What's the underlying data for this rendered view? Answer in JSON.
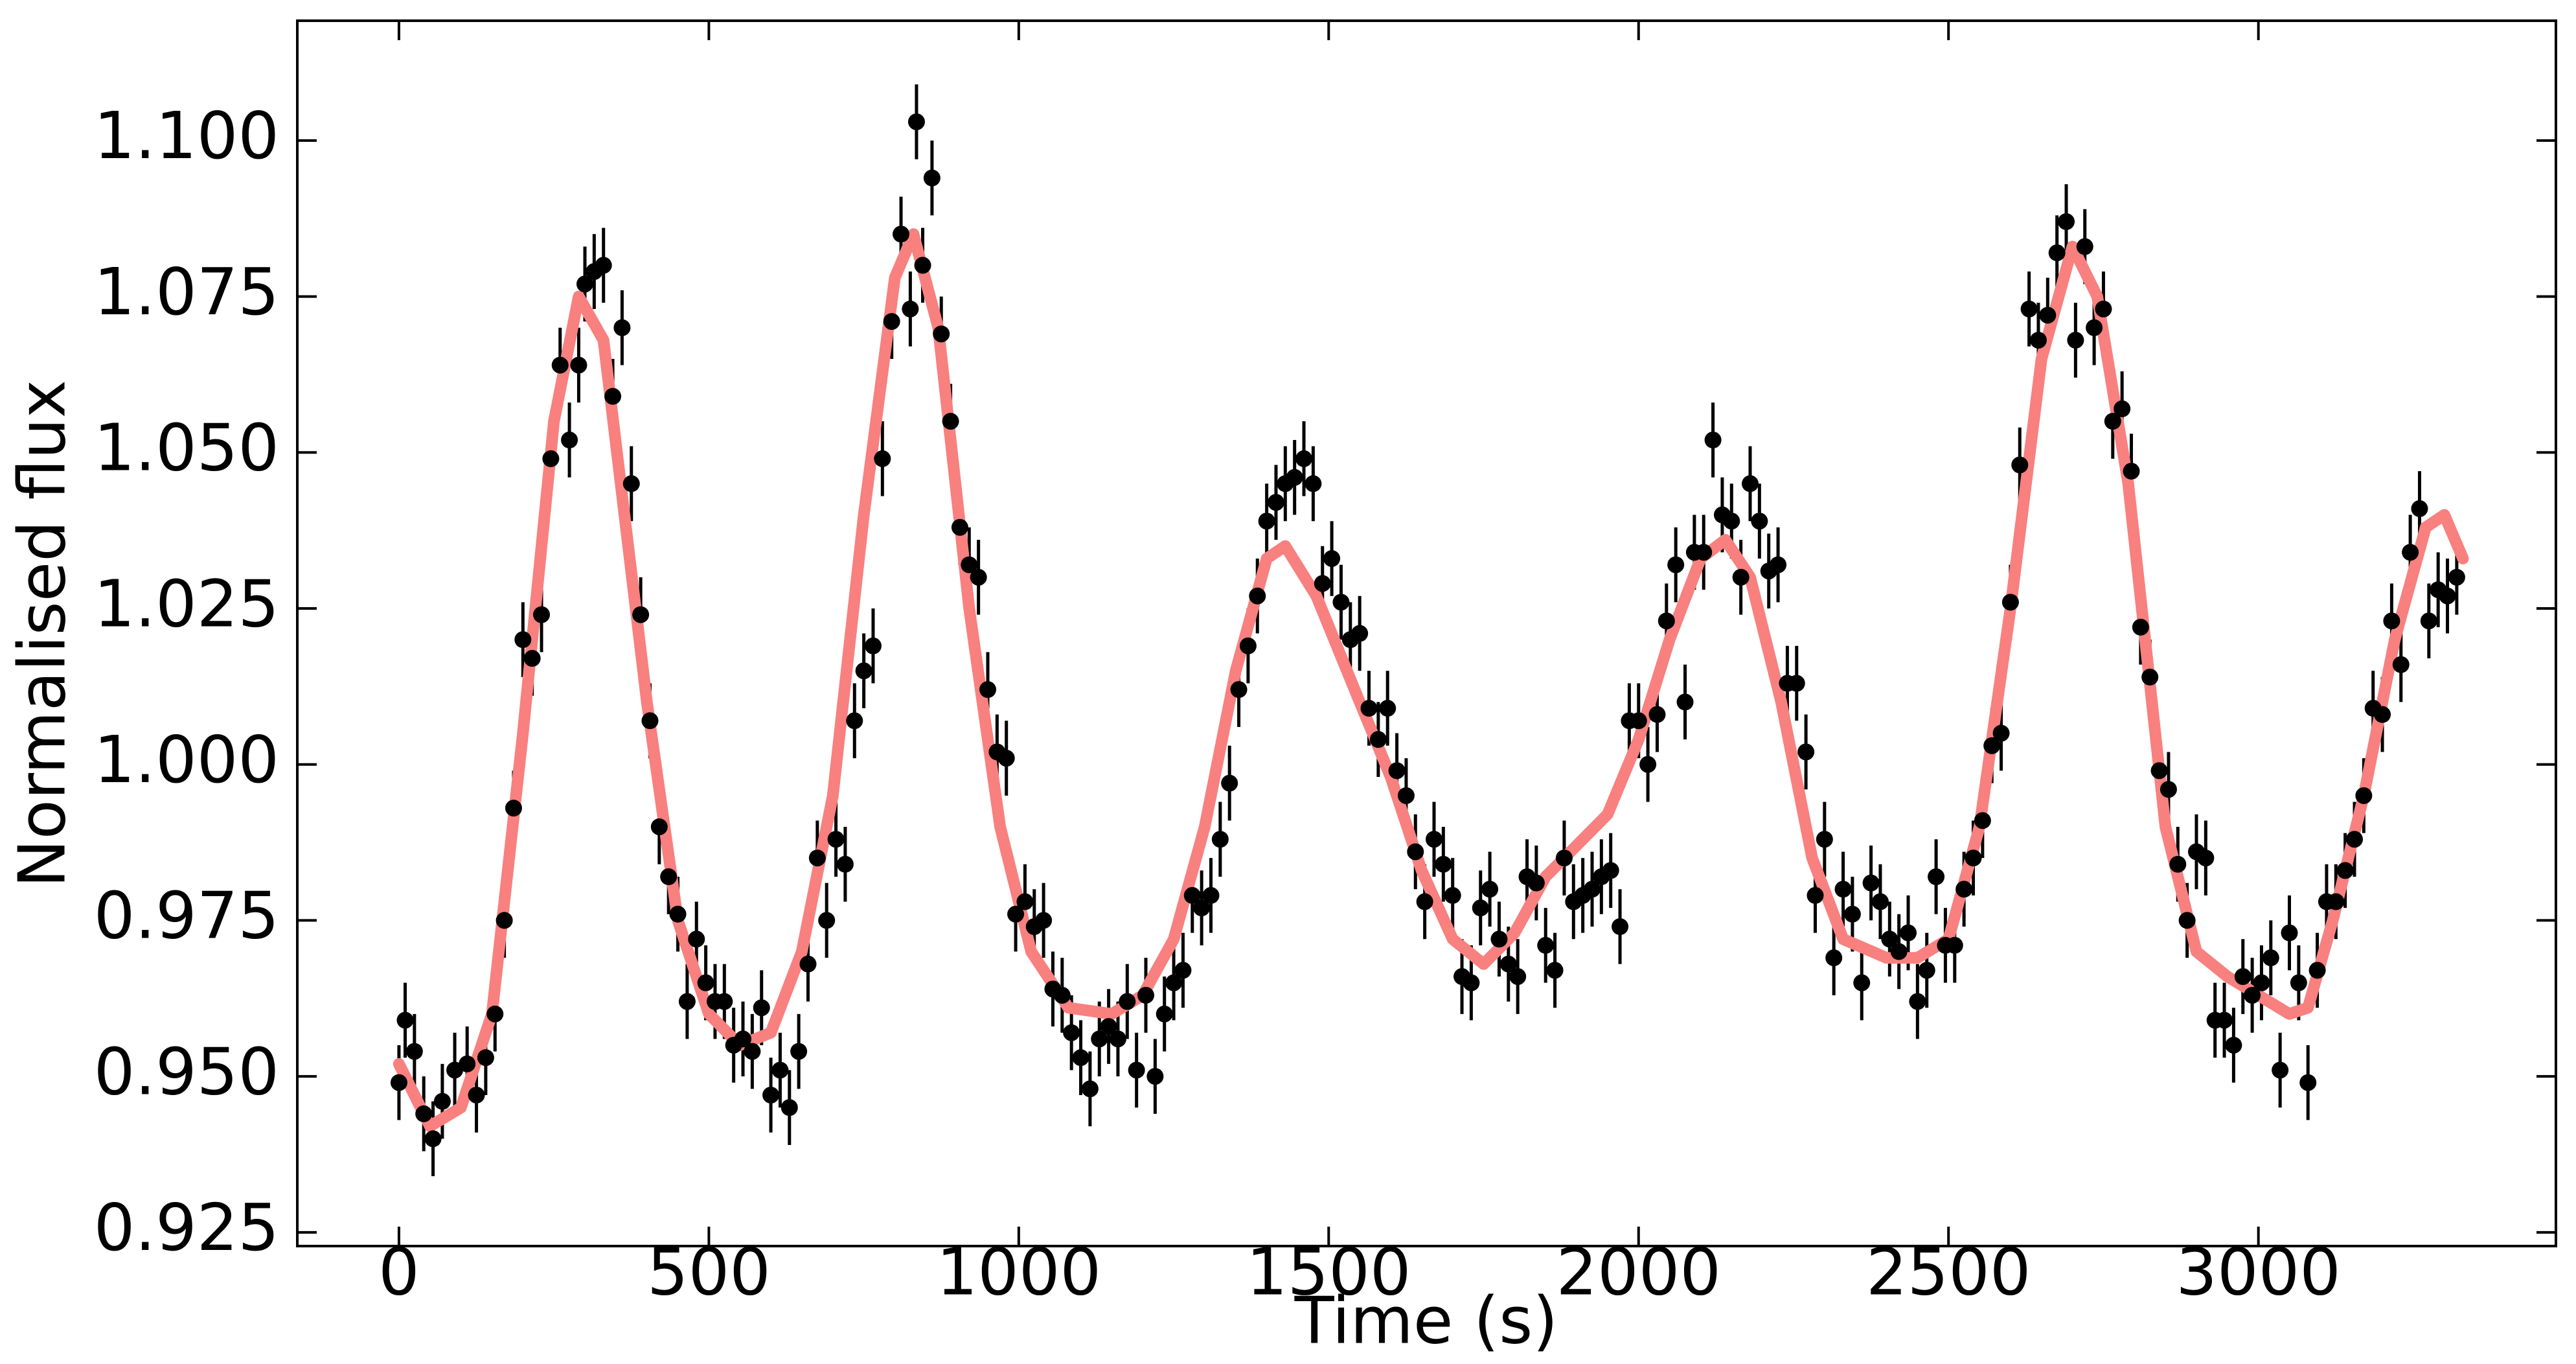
{
  "chart_data": {
    "type": "scatter",
    "xlabel": "Time (s)",
    "ylabel": "Normalised flux",
    "xlim": [
      -164,
      3480
    ],
    "ylim": [
      0.9228,
      1.1192
    ],
    "xticks": [
      0,
      500,
      1000,
      1500,
      2000,
      2500,
      3000
    ],
    "yticks": [
      {
        "value": 0.925,
        "label": "0.925"
      },
      {
        "value": 0.95,
        "label": "0.950"
      },
      {
        "value": 0.975,
        "label": "0.975"
      },
      {
        "value": 1.0,
        "label": "1.000"
      },
      {
        "value": 1.025,
        "label": "1.025"
      },
      {
        "value": 1.05,
        "label": "1.050"
      },
      {
        "value": 1.075,
        "label": "1.075"
      },
      {
        "value": 1.1,
        "label": "1.100"
      }
    ],
    "points": {
      "color": "#000000",
      "yerr": 0.006,
      "x": [
        0,
        10,
        25,
        40,
        55,
        70,
        90,
        110,
        125,
        140,
        155,
        170,
        185,
        200,
        215,
        230,
        245,
        260,
        275,
        290,
        300,
        315,
        330,
        345,
        360,
        375,
        390,
        405,
        420,
        435,
        450,
        465,
        480,
        495,
        510,
        525,
        540,
        555,
        570,
        585,
        600,
        615,
        630,
        645,
        660,
        675,
        690,
        705,
        720,
        735,
        750,
        765,
        780,
        795,
        810,
        825,
        835,
        845,
        860,
        875,
        890,
        905,
        920,
        935,
        950,
        965,
        980,
        995,
        1010,
        1025,
        1040,
        1055,
        1070,
        1085,
        1100,
        1115,
        1130,
        1145,
        1160,
        1175,
        1190,
        1205,
        1220,
        1235,
        1250,
        1265,
        1280,
        1295,
        1310,
        1325,
        1340,
        1355,
        1370,
        1385,
        1400,
        1415,
        1430,
        1445,
        1460,
        1475,
        1490,
        1505,
        1520,
        1535,
        1550,
        1565,
        1580,
        1595,
        1610,
        1625,
        1640,
        1655,
        1670,
        1685,
        1700,
        1715,
        1730,
        1745,
        1760,
        1775,
        1790,
        1805,
        1820,
        1835,
        1850,
        1865,
        1880,
        1895,
        1910,
        1925,
        1940,
        1955,
        1970,
        1985,
        2000,
        2015,
        2030,
        2045,
        2060,
        2075,
        2090,
        2105,
        2120,
        2135,
        2150,
        2165,
        2180,
        2195,
        2210,
        2225,
        2240,
        2255,
        2270,
        2285,
        2300,
        2315,
        2330,
        2345,
        2360,
        2375,
        2390,
        2405,
        2420,
        2435,
        2450,
        2465,
        2480,
        2495,
        2510,
        2525,
        2540,
        2555,
        2570,
        2585,
        2600,
        2615,
        2630,
        2645,
        2660,
        2675,
        2690,
        2705,
        2720,
        2735,
        2750,
        2765,
        2780,
        2795,
        2810,
        2825,
        2840,
        2855,
        2870,
        2885,
        2900,
        2915,
        2930,
        2945,
        2960,
        2975,
        2990,
        3005,
        3020,
        3035,
        3050,
        3065,
        3080,
        3095,
        3110,
        3125,
        3140,
        3155,
        3170,
        3185,
        3200,
        3215,
        3230,
        3245,
        3260,
        3275,
        3290,
        3305,
        3320
      ],
      "values": [
        0.949,
        0.959,
        0.954,
        0.944,
        0.94,
        0.946,
        0.951,
        0.952,
        0.947,
        0.953,
        0.96,
        0.975,
        0.993,
        1.02,
        1.017,
        1.024,
        1.049,
        1.064,
        1.052,
        1.064,
        1.077,
        1.079,
        1.08,
        1.059,
        1.07,
        1.045,
        1.024,
        1.007,
        0.99,
        0.982,
        0.976,
        0.962,
        0.972,
        0.965,
        0.962,
        0.962,
        0.955,
        0.956,
        0.954,
        0.961,
        0.947,
        0.951,
        0.945,
        0.954,
        0.968,
        0.985,
        0.975,
        0.988,
        0.984,
        1.007,
        1.015,
        1.019,
        1.049,
        1.071,
        1.085,
        1.073,
        1.103,
        1.08,
        1.094,
        1.069,
        1.055,
        1.038,
        1.032,
        1.03,
        1.012,
        1.002,
        1.001,
        0.976,
        0.978,
        0.974,
        0.975,
        0.964,
        0.963,
        0.957,
        0.953,
        0.948,
        0.956,
        0.958,
        0.956,
        0.962,
        0.951,
        0.963,
        0.95,
        0.96,
        0.965,
        0.967,
        0.979,
        0.977,
        0.979,
        0.988,
        0.997,
        1.012,
        1.019,
        1.027,
        1.039,
        1.042,
        1.045,
        1.046,
        1.049,
        1.045,
        1.029,
        1.033,
        1.026,
        1.02,
        1.021,
        1.009,
        1.004,
        1.009,
        0.999,
        0.995,
        0.986,
        0.978,
        0.988,
        0.984,
        0.979,
        0.966,
        0.965,
        0.977,
        0.98,
        0.972,
        0.968,
        0.966,
        0.982,
        0.981,
        0.971,
        0.967,
        0.985,
        0.978,
        0.979,
        0.98,
        0.982,
        0.983,
        0.974,
        1.007,
        1.007,
        1.0,
        1.008,
        1.023,
        1.032,
        1.01,
        1.034,
        1.034,
        1.052,
        1.04,
        1.039,
        1.03,
        1.045,
        1.039,
        1.031,
        1.032,
        1.013,
        1.013,
        1.002,
        0.979,
        0.988,
        0.969,
        0.98,
        0.976,
        0.965,
        0.981,
        0.978,
        0.972,
        0.97,
        0.973,
        0.962,
        0.967,
        0.982,
        0.971,
        0.971,
        0.98,
        0.985,
        0.991,
        1.003,
        1.005,
        1.026,
        1.048,
        1.073,
        1.068,
        1.072,
        1.082,
        1.087,
        1.068,
        1.083,
        1.07,
        1.073,
        1.055,
        1.057,
        1.047,
        1.022,
        1.014,
        0.999,
        0.996,
        0.984,
        0.975,
        0.986,
        0.985,
        0.959,
        0.959,
        0.955,
        0.966,
        0.963,
        0.965,
        0.969,
        0.951,
        0.973,
        0.965,
        0.949,
        0.967,
        0.978,
        0.978,
        0.983,
        0.988,
        0.995,
        1.009,
        1.008,
        1.023,
        1.016,
        1.034,
        1.041,
        1.023,
        1.028,
        1.027,
        1.03
      ]
    },
    "model": {
      "color": "#f8807f",
      "x": [
        0,
        50,
        100,
        150,
        200,
        250,
        290,
        330,
        400,
        450,
        500,
        550,
        600,
        650,
        700,
        750,
        800,
        830,
        870,
        920,
        970,
        1020,
        1080,
        1150,
        1200,
        1250,
        1300,
        1350,
        1400,
        1430,
        1480,
        1550,
        1600,
        1650,
        1700,
        1750,
        1800,
        1850,
        1900,
        1950,
        2000,
        2050,
        2100,
        2140,
        2180,
        2230,
        2280,
        2330,
        2400,
        2450,
        2500,
        2550,
        2600,
        2650,
        2700,
        2740,
        2790,
        2850,
        2900,
        2950,
        3000,
        3050,
        3080,
        3120,
        3170,
        3220,
        3270,
        3300,
        3330
      ],
      "values": [
        0.952,
        0.942,
        0.945,
        0.96,
        1.005,
        1.055,
        1.075,
        1.068,
        1.01,
        0.975,
        0.96,
        0.955,
        0.957,
        0.97,
        0.995,
        1.04,
        1.078,
        1.085,
        1.07,
        1.025,
        0.99,
        0.97,
        0.961,
        0.96,
        0.963,
        0.972,
        0.99,
        1.015,
        1.033,
        1.035,
        1.027,
        1.01,
        0.998,
        0.983,
        0.972,
        0.968,
        0.973,
        0.982,
        0.987,
        0.992,
        1.004,
        1.02,
        1.033,
        1.036,
        1.03,
        1.01,
        0.985,
        0.972,
        0.969,
        0.969,
        0.972,
        0.99,
        1.025,
        1.065,
        1.083,
        1.075,
        1.045,
        0.99,
        0.97,
        0.966,
        0.963,
        0.96,
        0.961,
        0.975,
        0.995,
        1.02,
        1.038,
        1.04,
        1.033
      ]
    }
  }
}
